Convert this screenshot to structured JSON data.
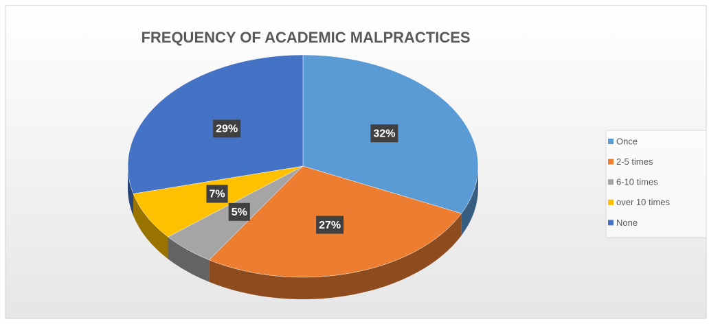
{
  "chart_data": {
    "type": "pie3d",
    "title": "FREQUENCY OF ACADEMIC MALPRACTICES",
    "categories": [
      "Once",
      "2-5 times",
      "6-10 times",
      "over 10 times",
      "None"
    ],
    "values": [
      32,
      27,
      5,
      7,
      29
    ],
    "value_labels": [
      "32%",
      "27%",
      "5%",
      "7%",
      "29%"
    ],
    "colors": [
      "#5b9bd5",
      "#ed7d31",
      "#a5a5a5",
      "#ffc000",
      "#4472c4"
    ],
    "legend": "right"
  }
}
